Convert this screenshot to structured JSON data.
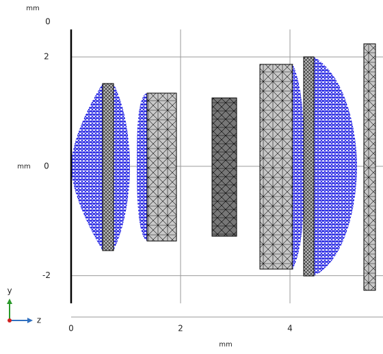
{
  "chart_data": {
    "type": "geometry",
    "xlabel": "mm",
    "ylabel": "mm",
    "zlabel": "mm",
    "zticks": [
      0
    ],
    "xlim": [
      0,
      5.7
    ],
    "ylim": [
      -2.53,
      2.54
    ],
    "xticks": [
      0,
      2,
      4
    ],
    "yticks": [
      -2,
      0,
      2
    ],
    "grid": true,
    "triad": {
      "up": "y",
      "right": "z"
    }
  }
}
